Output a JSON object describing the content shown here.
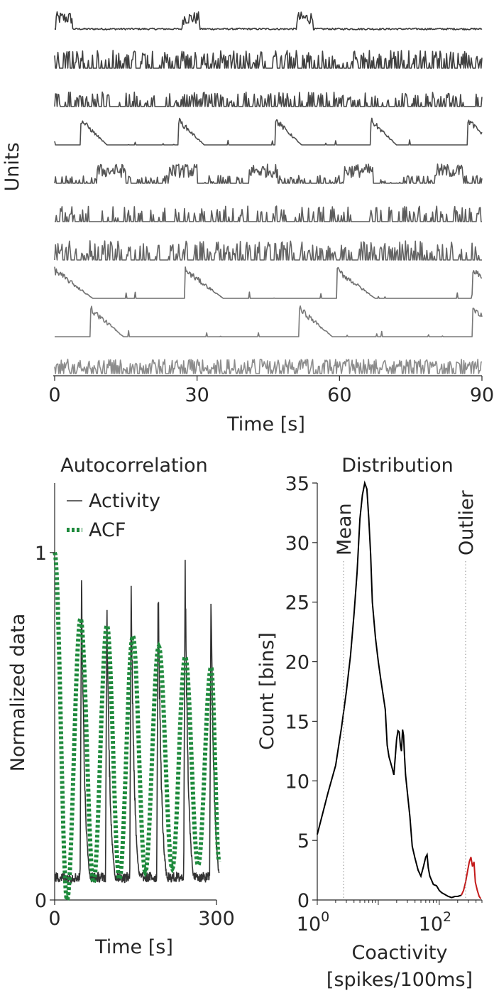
{
  "chart_data": [
    {
      "type": "line",
      "title": "",
      "xlabel": "Time [s]",
      "ylabel": "Units",
      "xlim": [
        0,
        90
      ],
      "xticks": [
        "0",
        "30",
        "60",
        "90"
      ],
      "grid": false,
      "legend": "none",
      "units": [
        {
          "pattern": "bursty",
          "burst_starts_s": [
            0.3,
            27,
            51
          ],
          "burst_len_s": 3.5,
          "baseline": 0.08,
          "color": "#3a3a3a"
        },
        {
          "pattern": "noisy",
          "rate": 0.45,
          "color": "#404040"
        },
        {
          "pattern": "sparse-spikes",
          "rate": 0.35,
          "color": "#474747"
        },
        {
          "pattern": "decay",
          "onsets_s": [
            5.5,
            26,
            46.5,
            66.5,
            87
          ],
          "decay_s": 5.5,
          "color": "#4d4d4d"
        },
        {
          "pattern": "noisy-bursts",
          "burst_starts_s": [
            9,
            24,
            41,
            61,
            80
          ],
          "burst_len_s": 6,
          "color": "#555555"
        },
        {
          "pattern": "noisy",
          "rate": 0.25,
          "color": "#5c5c5c"
        },
        {
          "pattern": "noisy",
          "rate": 0.4,
          "color": "#646464"
        },
        {
          "pattern": "decay",
          "onsets_s": [
            0,
            27.5,
            59.5,
            88
          ],
          "decay_s": 8,
          "color": "#6e6e6e"
        },
        {
          "pattern": "decay",
          "onsets_s": [
            7.5,
            51.5,
            88
          ],
          "decay_s": 7,
          "color": "#7a7a7a"
        },
        {
          "pattern": "dense-spikes",
          "rate": 0.7,
          "color": "#8c8c8c"
        }
      ]
    },
    {
      "type": "line",
      "title": "Autocorrelation",
      "xlabel": "Time [s]",
      "ylabel": "Normalized data",
      "xlim": [
        0,
        300
      ],
      "ylim": [
        0,
        1.2
      ],
      "xticks": [
        "0",
        "300"
      ],
      "yticks": [
        "0",
        "1"
      ],
      "legend": "top",
      "legend_entries": [
        "Activity",
        "ACF"
      ],
      "series": [
        {
          "name": "Activity",
          "color": "#333333",
          "style": "solid",
          "peaks": [
            [
              50,
              0.98
            ],
            [
              97,
              0.9
            ],
            [
              142,
              0.96
            ],
            [
              192,
              0.97
            ],
            [
              242,
              0.99
            ],
            [
              290,
              0.93
            ]
          ]
        },
        {
          "name": "ACF",
          "color": "#1e8a3c",
          "style": "dotted",
          "peaks": [
            [
              0,
              1.0
            ],
            [
              48,
              0.81
            ],
            [
              97,
              0.79
            ],
            [
              145,
              0.76
            ],
            [
              193,
              0.73
            ],
            [
              242,
              0.7
            ],
            [
              290,
              0.67
            ]
          ],
          "troughs": [
            [
              23,
              0.0
            ],
            [
              72,
              0.05
            ],
            [
              120,
              0.06
            ],
            [
              168,
              0.08
            ],
            [
              218,
              0.09
            ],
            [
              266,
              0.1
            ]
          ],
          "end": [
            305,
            0.11
          ]
        }
      ]
    },
    {
      "type": "line",
      "title": "Distribution",
      "xlabel": "Coactivity\n[spikes/100ms]",
      "ylabel": "Count [bins]",
      "xscale": "log",
      "xlim": [
        1,
        500
      ],
      "ylim": [
        0,
        35
      ],
      "xticks": [
        "10^0",
        "10^2"
      ],
      "yticks": [
        0,
        5,
        10,
        15,
        20,
        25,
        30,
        35
      ],
      "annotations": [
        {
          "label": "Mean",
          "x": 2.7,
          "color": "#262626"
        },
        {
          "label": "Outlier",
          "x": 270,
          "color": "#c41a1a"
        }
      ],
      "series": [
        {
          "name": "main",
          "color": "#000000",
          "points": [
            [
              1,
              5.5
            ],
            [
              1.5,
              9
            ],
            [
              2,
              11.3
            ],
            [
              2.5,
              14.5
            ],
            [
              3,
              17.5
            ],
            [
              3.5,
              20.5
            ],
            [
              4,
              24
            ],
            [
              4.5,
              27.5
            ],
            [
              5,
              32
            ],
            [
              5.5,
              34
            ],
            [
              6,
              35
            ],
            [
              6.5,
              34.5
            ],
            [
              7,
              32
            ],
            [
              7.5,
              29
            ],
            [
              8,
              25
            ],
            [
              9,
              22
            ],
            [
              10,
              20
            ],
            [
              11,
              18.5
            ],
            [
              12,
              17.2
            ],
            [
              13,
              16
            ],
            [
              14,
              13
            ],
            [
              15,
              12
            ],
            [
              16,
              11.5
            ],
            [
              17,
              11
            ],
            [
              18,
              10.5
            ],
            [
              19,
              12
            ],
            [
              20,
              13.5
            ],
            [
              21,
              14.2
            ],
            [
              22,
              14.1
            ],
            [
              23,
              13
            ],
            [
              24,
              12.5
            ],
            [
              25,
              14.3
            ],
            [
              26,
              13.8
            ],
            [
              27,
              12
            ],
            [
              28,
              10.5
            ],
            [
              30,
              9
            ],
            [
              33,
              7
            ],
            [
              36,
              4.5
            ],
            [
              40,
              3.5
            ],
            [
              45,
              2.5
            ],
            [
              50,
              2
            ],
            [
              55,
              2.8
            ],
            [
              60,
              3.6
            ],
            [
              63,
              3.8
            ],
            [
              66,
              2.7
            ],
            [
              70,
              2
            ],
            [
              80,
              1.3
            ],
            [
              90,
              1.2
            ],
            [
              100,
              0.8
            ],
            [
              110,
              0.6
            ],
            [
              120,
              0.5
            ],
            [
              140,
              0.3
            ],
            [
              160,
              0.2
            ],
            [
              180,
              0.3
            ],
            [
              200,
              0.3
            ],
            [
              230,
              0.4
            ]
          ]
        },
        {
          "name": "outlier",
          "color": "#c41a1a",
          "points": [
            [
              230,
              0.4
            ],
            [
              250,
              0.8
            ],
            [
              270,
              1.5
            ],
            [
              290,
              2.4
            ],
            [
              310,
              3.2
            ],
            [
              330,
              3.6
            ],
            [
              350,
              2.8
            ],
            [
              370,
              3.2
            ],
            [
              390,
              1.5
            ],
            [
              420,
              0.8
            ],
            [
              450,
              0.3
            ],
            [
              480,
              0.1
            ]
          ]
        }
      ]
    }
  ]
}
